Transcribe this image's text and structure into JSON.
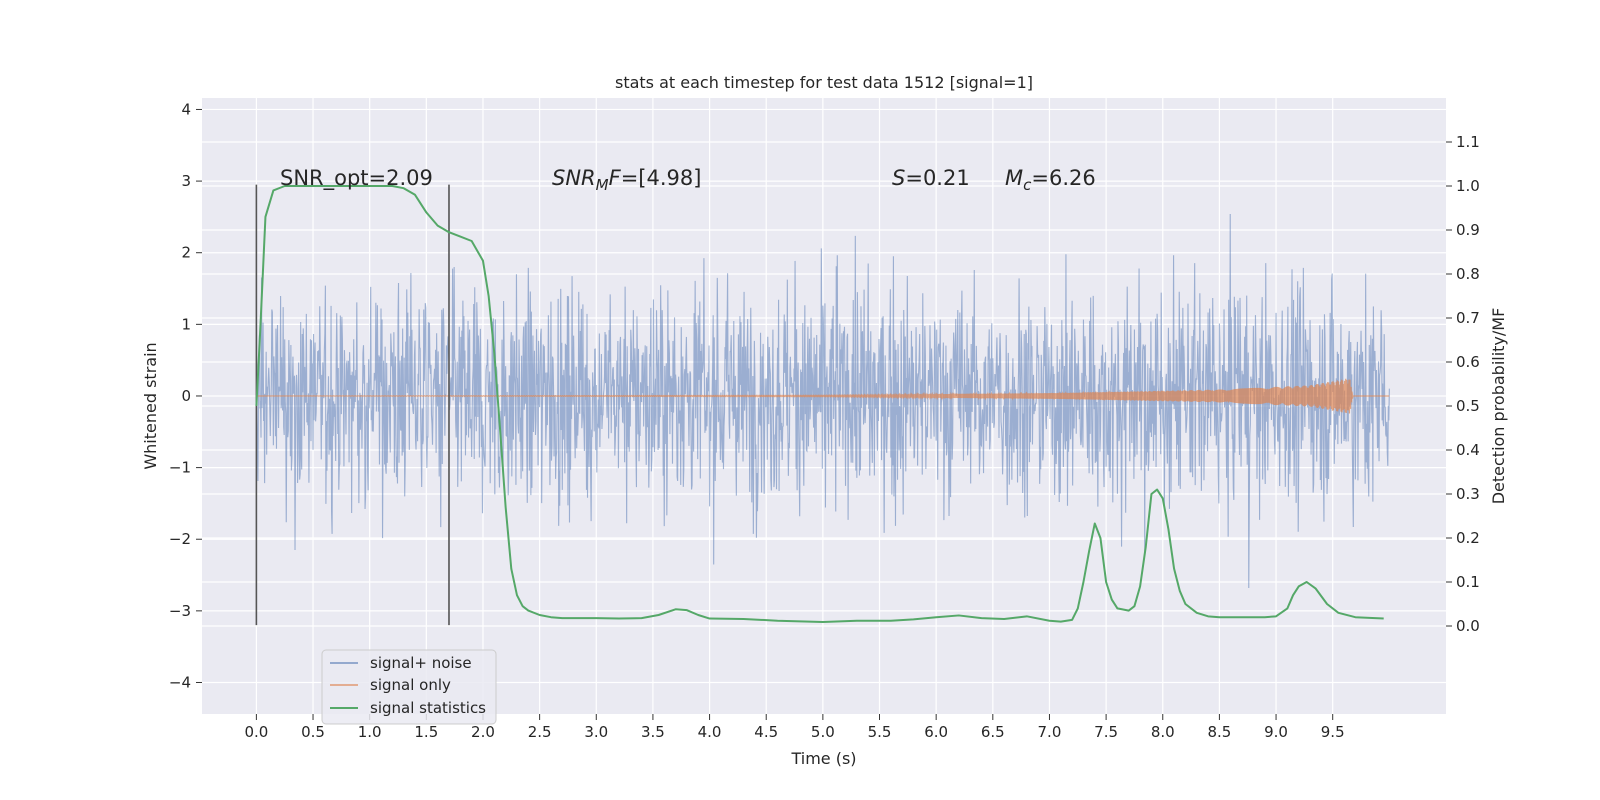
{
  "chart_data": {
    "type": "line",
    "title": "stats at each timestep for test data 1512 [signal=1]",
    "xlabel": "Time (s)",
    "ylabel": "Whitened strain",
    "ylabel_right": "Detection probability/MF",
    "xlim": [
      -0.48,
      10.5
    ],
    "ylim": [
      -4.44,
      4.16
    ],
    "ylim_right": [
      -0.2,
      1.2
    ],
    "x_ticks": [
      "0.0",
      "0.5",
      "1.0",
      "1.5",
      "2.0",
      "2.5",
      "3.0",
      "3.5",
      "4.0",
      "4.5",
      "5.0",
      "5.5",
      "6.0",
      "6.5",
      "7.0",
      "7.5",
      "8.0",
      "8.5",
      "9.0",
      "9.5"
    ],
    "y_ticks_left": [
      "4",
      "3",
      "2",
      "1",
      "0",
      "−1",
      "−2",
      "−3",
      "−4"
    ],
    "y_ticks_right": [
      "1.1",
      "1.0",
      "0.9",
      "0.8",
      "0.7",
      "0.6",
      "0.5",
      "0.4",
      "0.3",
      "0.2",
      "0.1",
      "0.0"
    ],
    "grid": true,
    "legend_position": "lower-left",
    "annotations": {
      "snr_opt": "SNR_opt=2.09",
      "snr_mf_base": "SNR",
      "snr_mf_sub": "M",
      "snr_mf_mid": "F",
      "snr_mf_value": "=[4.98]",
      "s_label": "S",
      "s_value": "=0.21",
      "mc_base": "M",
      "mc_sub": "c",
      "mc_value": "=6.26"
    },
    "vertical_markers": [
      0.0,
      1.7
    ],
    "series": [
      {
        "name": "signal+ noise",
        "color": "#4c72b0",
        "description": "noisy whitened strain, amplitude roughly within [-3.5, 3.5]",
        "x_range": [
          0.0,
          10.0
        ]
      },
      {
        "name": "signal only",
        "color": "#dd8452",
        "x_range": [
          0.0,
          10.0
        ],
        "amplitude_growth": [
          [
            0.0,
            0.0
          ],
          [
            5.0,
            0.01
          ],
          [
            7.0,
            0.04
          ],
          [
            8.5,
            0.09
          ],
          [
            9.3,
            0.15
          ],
          [
            9.65,
            0.25
          ],
          [
            9.68,
            0.0
          ],
          [
            10.0,
            0.0
          ]
        ]
      },
      {
        "name": "signal statistics",
        "color": "#55a868",
        "axis": "right",
        "x": [
          0.0,
          0.03,
          0.08,
          0.15,
          0.25,
          0.4,
          0.6,
          0.8,
          1.0,
          1.2,
          1.3,
          1.4,
          1.5,
          1.6,
          1.7,
          1.8,
          1.9,
          2.0,
          2.05,
          2.1,
          2.15,
          2.2,
          2.25,
          2.3,
          2.35,
          2.4,
          2.5,
          2.6,
          2.7,
          2.8,
          3.0,
          3.2,
          3.4,
          3.55,
          3.7,
          3.8,
          3.9,
          4.0,
          4.3,
          4.6,
          5.0,
          5.3,
          5.6,
          5.8,
          6.0,
          6.2,
          6.4,
          6.6,
          6.8,
          7.0,
          7.1,
          7.2,
          7.25,
          7.3,
          7.35,
          7.4,
          7.45,
          7.5,
          7.55,
          7.6,
          7.7,
          7.75,
          7.8,
          7.85,
          7.9,
          7.95,
          8.0,
          8.05,
          8.1,
          8.15,
          8.2,
          8.3,
          8.4,
          8.5,
          8.7,
          8.9,
          9.0,
          9.1,
          9.15,
          9.2,
          9.27,
          9.35,
          9.45,
          9.55,
          9.7,
          9.95
        ],
        "y": [
          0.5,
          0.65,
          0.93,
          0.99,
          1.0,
          1.0,
          1.0,
          1.0,
          1.0,
          1.0,
          0.995,
          0.98,
          0.94,
          0.91,
          0.895,
          0.885,
          0.875,
          0.83,
          0.75,
          0.62,
          0.45,
          0.27,
          0.13,
          0.07,
          0.045,
          0.035,
          0.025,
          0.02,
          0.018,
          0.018,
          0.018,
          0.017,
          0.018,
          0.025,
          0.038,
          0.036,
          0.025,
          0.017,
          0.016,
          0.012,
          0.009,
          0.012,
          0.012,
          0.015,
          0.02,
          0.024,
          0.018,
          0.016,
          0.022,
          0.012,
          0.01,
          0.014,
          0.04,
          0.1,
          0.17,
          0.233,
          0.2,
          0.1,
          0.06,
          0.04,
          0.035,
          0.045,
          0.09,
          0.18,
          0.3,
          0.31,
          0.29,
          0.22,
          0.13,
          0.08,
          0.05,
          0.03,
          0.022,
          0.02,
          0.02,
          0.02,
          0.022,
          0.04,
          0.07,
          0.09,
          0.1,
          0.085,
          0.05,
          0.03,
          0.02,
          0.017
        ]
      }
    ]
  }
}
